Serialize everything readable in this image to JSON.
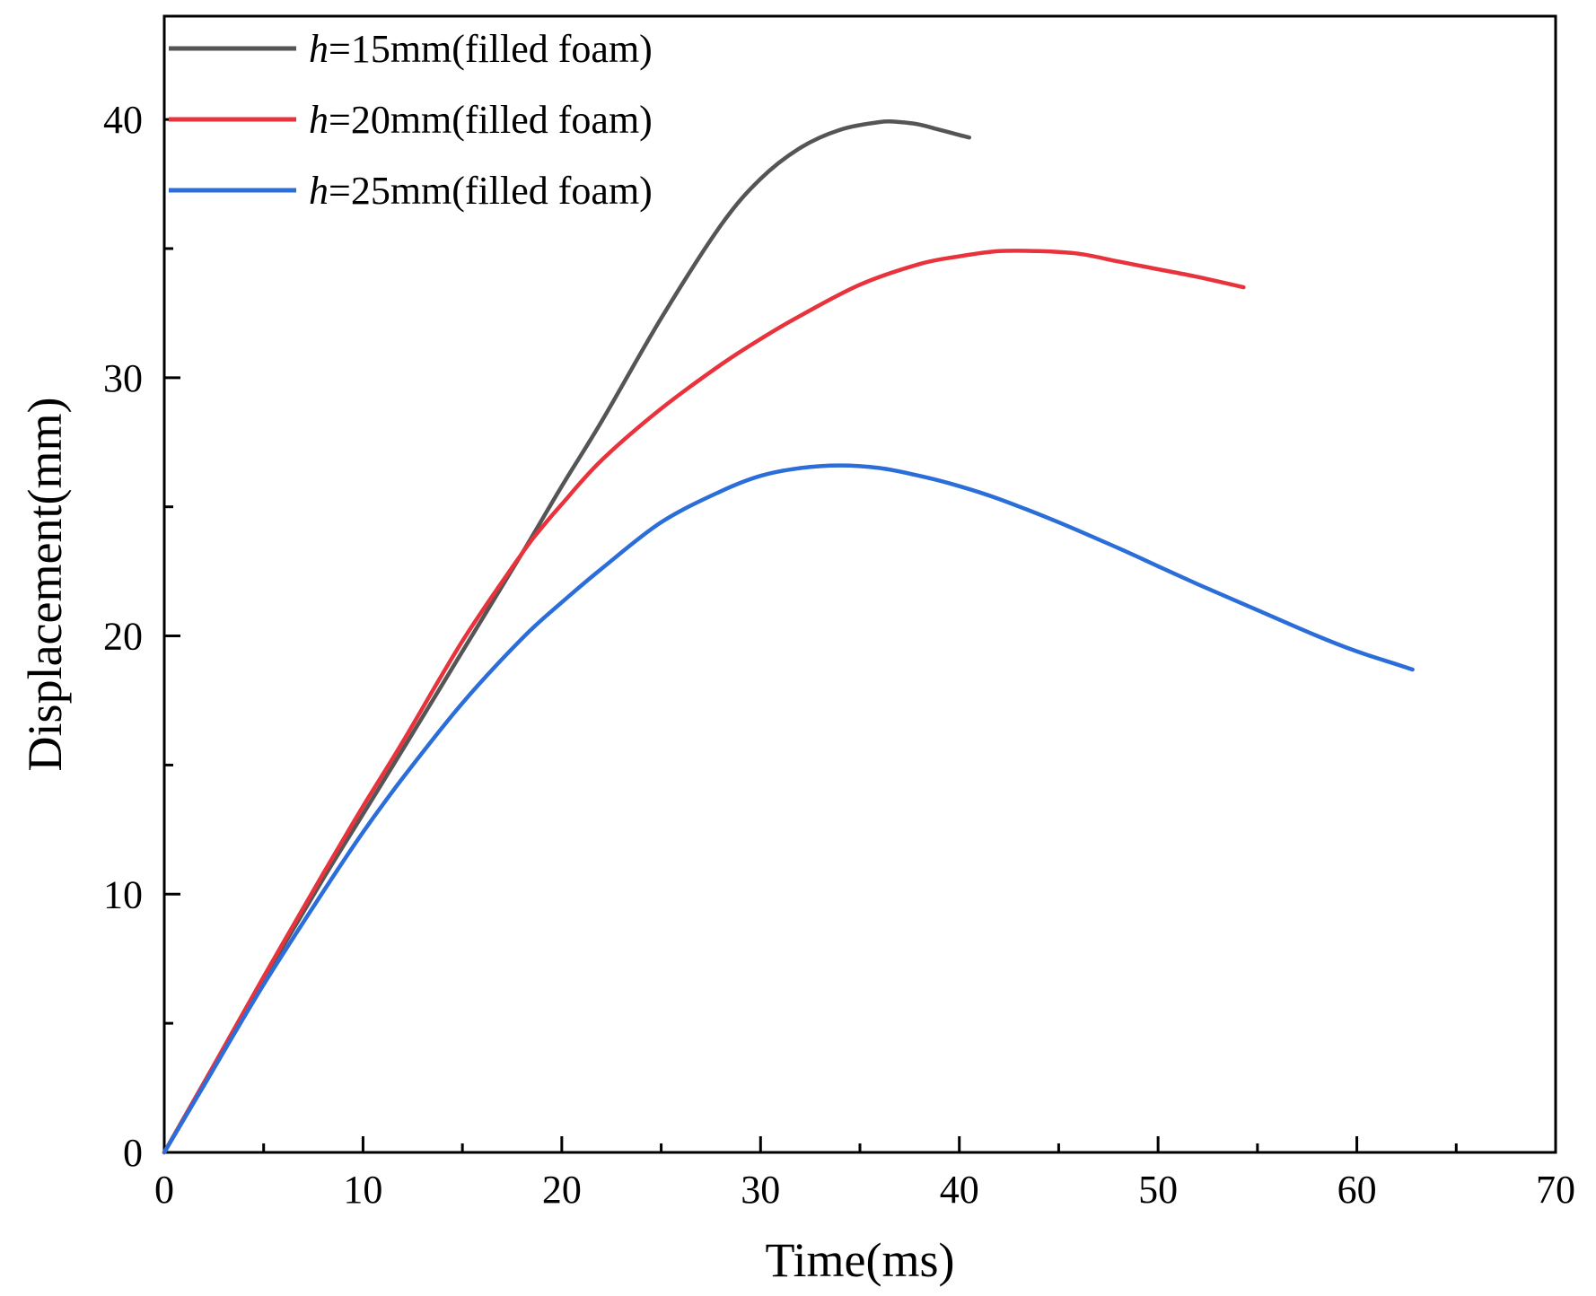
{
  "chart_data": {
    "type": "line",
    "title": "",
    "xlabel": "Time(ms)",
    "ylabel": "Displacement(mm)",
    "xlim": [
      0,
      70
    ],
    "ylim": [
      0,
      44
    ],
    "x_ticks": [
      0,
      10,
      20,
      30,
      40,
      50,
      60,
      70
    ],
    "x_tick_labels": [
      "0",
      "10",
      "20",
      "30",
      "40",
      "50",
      "60",
      "70"
    ],
    "y_ticks": [
      0,
      10,
      20,
      30,
      40
    ],
    "y_tick_labels": [
      "0",
      "10",
      "20",
      "30",
      "40"
    ],
    "minor_x_ticks": [
      5,
      15,
      25,
      35,
      45,
      55,
      65
    ],
    "minor_y_ticks": [
      5,
      15,
      25,
      35
    ],
    "grid": false,
    "legend_position": "top-left",
    "series": [
      {
        "name": "h=15mm(filled foam)",
        "legend_italic": "h",
        "legend_rest": "=15mm(filled foam)",
        "color": "#555555",
        "x": [
          0,
          2,
          5,
          8,
          10,
          12,
          15,
          18,
          20,
          22,
          25,
          28,
          30,
          32,
          34,
          36,
          37,
          38,
          39,
          40,
          40.5
        ],
        "y": [
          0,
          2.7,
          6.7,
          10.6,
          13.1,
          15.6,
          19.4,
          23.2,
          25.8,
          28.3,
          32.3,
          35.9,
          37.7,
          38.9,
          39.6,
          39.9,
          39.9,
          39.8,
          39.6,
          39.4,
          39.3
        ]
      },
      {
        "name": "h=20mm(filled foam)",
        "legend_italic": "h",
        "legend_rest": "=20mm(filled foam)",
        "color": "#e8333c",
        "x": [
          0,
          2,
          5,
          8,
          10,
          12,
          15,
          18,
          19,
          20,
          22,
          25,
          28,
          30,
          32,
          35,
          38,
          40,
          42,
          44,
          46,
          48,
          50,
          52,
          54.3
        ],
        "y": [
          0,
          2.7,
          6.8,
          10.8,
          13.4,
          15.9,
          19.8,
          23.2,
          24.2,
          25.1,
          26.8,
          28.8,
          30.5,
          31.5,
          32.4,
          33.6,
          34.4,
          34.7,
          34.9,
          34.9,
          34.8,
          34.5,
          34.2,
          33.9,
          33.5
        ]
      },
      {
        "name": "h=25mm(filled foam)",
        "legend_italic": "h",
        "legend_rest": "=25mm(filled foam)",
        "color": "#2b6ed9",
        "x": [
          0,
          2,
          5,
          8,
          10,
          12,
          15,
          18,
          20,
          22,
          25,
          28,
          30,
          32,
          34,
          36,
          38,
          40,
          42,
          45,
          48,
          50,
          52,
          55,
          58,
          60,
          62,
          62.8
        ],
        "y": [
          0,
          2.6,
          6.5,
          10.1,
          12.4,
          14.5,
          17.4,
          19.9,
          21.3,
          22.6,
          24.4,
          25.6,
          26.2,
          26.5,
          26.6,
          26.5,
          26.2,
          25.8,
          25.3,
          24.4,
          23.4,
          22.7,
          22.0,
          21.0,
          20.0,
          19.4,
          18.9,
          18.7
        ]
      }
    ]
  }
}
